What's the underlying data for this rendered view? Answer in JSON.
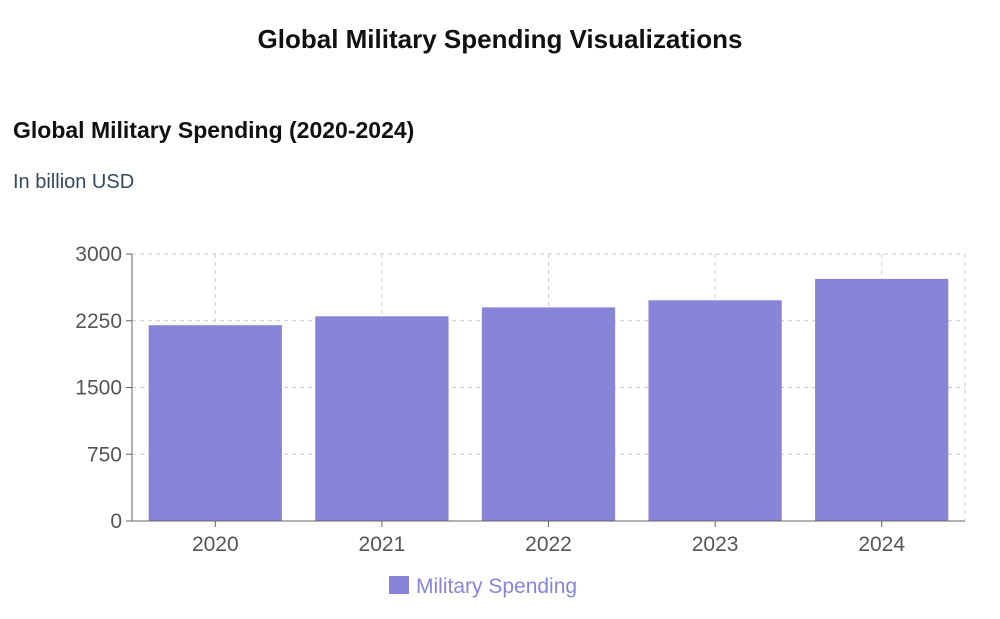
{
  "page": {
    "title": "Global Military Spending Visualizations"
  },
  "card": {
    "title": "Global Military Spending (2020-2024)",
    "subtitle": "In billion USD"
  },
  "colors": {
    "bar": "#8884d8",
    "grid": "#cccccc",
    "axis": "#666666"
  },
  "chart_data": {
    "type": "bar",
    "categories": [
      "2020",
      "2021",
      "2022",
      "2023",
      "2024"
    ],
    "series": [
      {
        "name": "Military Spending",
        "values": [
          2200,
          2300,
          2400,
          2480,
          2720
        ]
      }
    ],
    "ylim": [
      0,
      3000
    ],
    "yticks": [
      0,
      750,
      1500,
      2250,
      3000
    ],
    "grid": true,
    "legend": "bottom-center"
  }
}
